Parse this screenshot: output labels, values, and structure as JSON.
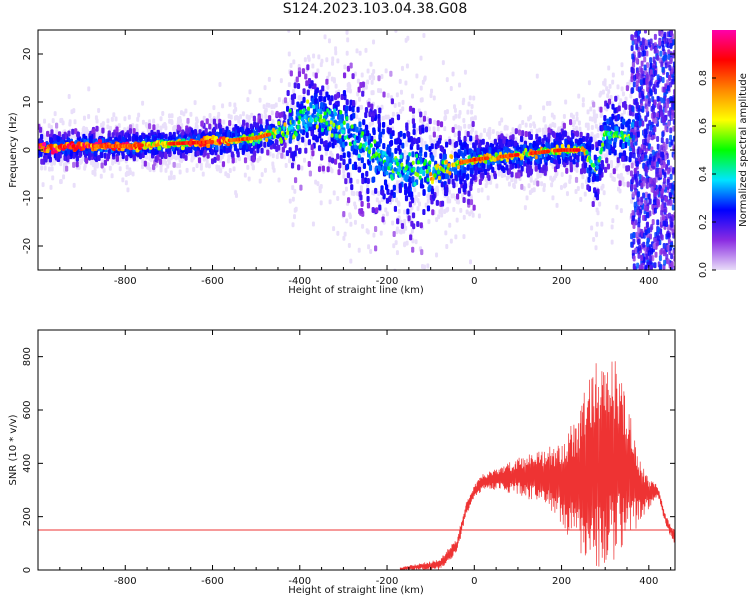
{
  "figure": {
    "title": "S124.2023.103.04.38.G08"
  },
  "chart_data": [
    {
      "type": "heatmap",
      "xlabel": "Height of straight line (km)",
      "ylabel": "Frequency (Hz)",
      "xlim": [
        -1000,
        460
      ],
      "ylim": [
        -25,
        25
      ],
      "xticks": [
        -800,
        -600,
        -400,
        -200,
        0,
        200,
        400
      ],
      "yticks": [
        -20,
        -10,
        0,
        10,
        20
      ],
      "colorbar": {
        "label": "Normalized spectral amplitude",
        "range": [
          0,
          1
        ],
        "ticks": [
          0.0,
          0.2,
          0.4,
          0.6,
          0.8
        ],
        "tick_labels": [
          "0.0",
          "0.2",
          "0.4",
          "0.6",
          "0.8"
        ],
        "colors": [
          "#e8dcf8",
          "#8a2be2",
          "#0000ff",
          "#00e5ff",
          "#00ff00",
          "#ffff00",
          "#ff8800",
          "#ff0000",
          "#ff00aa"
        ]
      },
      "ridge": {
        "description_points_x": [
          -1000,
          -900,
          -800,
          -700,
          -600,
          -500,
          -420,
          -370,
          -320,
          -260,
          -200,
          -150,
          -100,
          -50,
          0,
          50,
          100,
          150,
          200,
          250,
          280,
          300,
          340,
          370
        ],
        "description_points_y": [
          0.5,
          0.8,
          0.8,
          1.3,
          1.7,
          2.5,
          4.5,
          7.5,
          5.0,
          1.0,
          -2.5,
          -4.0,
          -4.5,
          -3.0,
          -2.0,
          -1.5,
          -1.0,
          -0.5,
          0.0,
          0.0,
          -4.5,
          3.5,
          3.0,
          2.0
        ]
      },
      "noise_region_x": [
        360,
        460
      ]
    },
    {
      "type": "line",
      "xlabel": "Height of straight line (km)",
      "ylabel": "SNR (10 * v/v)",
      "xlim": [
        -1000,
        460
      ],
      "ylim": [
        0,
        900
      ],
      "xticks": [
        -800,
        -600,
        -400,
        -200,
        0,
        200,
        400
      ],
      "yticks": [
        0,
        200,
        400,
        600,
        800
      ],
      "threshold": 150,
      "envelope_x": [
        -170,
        -80,
        -40,
        -20,
        0,
        20,
        50,
        100,
        150,
        200,
        240,
        260,
        280,
        300,
        320,
        340,
        360,
        380,
        400,
        420,
        440,
        460
      ],
      "envelope_upper": [
        10,
        40,
        120,
        250,
        320,
        360,
        380,
        420,
        450,
        480,
        600,
        730,
        800,
        760,
        800,
        700,
        560,
        420,
        340,
        320,
        200,
        150
      ],
      "envelope_lower": [
        0,
        0,
        60,
        200,
        270,
        300,
        300,
        280,
        250,
        160,
        50,
        20,
        10,
        20,
        30,
        60,
        120,
        180,
        230,
        280,
        160,
        90
      ],
      "color": "#ee3333"
    }
  ]
}
